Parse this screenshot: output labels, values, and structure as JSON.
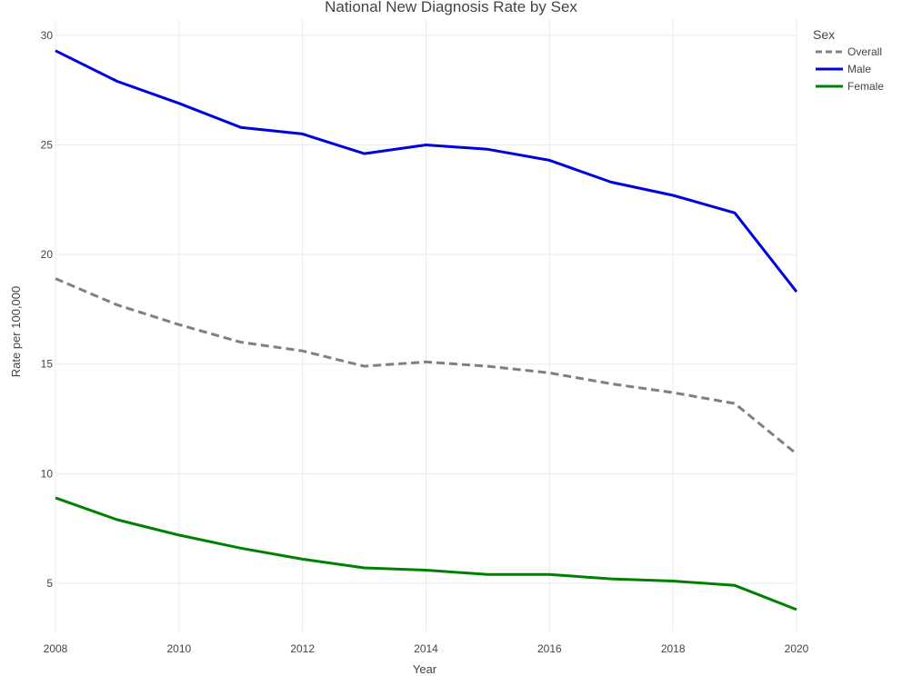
{
  "chart_data": {
    "type": "line",
    "title": "National New Diagnosis Rate by Sex",
    "xlabel": "Year",
    "ylabel": "Rate per 100,000",
    "x": [
      2008,
      2009,
      2010,
      2011,
      2012,
      2013,
      2014,
      2015,
      2016,
      2017,
      2018,
      2019,
      2020
    ],
    "xlim": [
      2008,
      2020
    ],
    "ylim": [
      2.8,
      30.7
    ],
    "x_ticks": [
      "2008",
      "2010",
      "2012",
      "2014",
      "2016",
      "2018",
      "2020"
    ],
    "y_ticks": [
      "5",
      "10",
      "15",
      "20",
      "25",
      "30"
    ],
    "grid": true,
    "legend": {
      "title": "Sex",
      "placement": "top-right"
    },
    "series": [
      {
        "name": "Overall",
        "color": "#808080",
        "dash": "dashed",
        "values": [
          18.9,
          17.7,
          16.8,
          16.0,
          15.6,
          14.9,
          15.1,
          14.9,
          14.6,
          14.1,
          13.7,
          13.2,
          10.9
        ]
      },
      {
        "name": "Male",
        "color": "#0000dd",
        "dash": "solid",
        "values": [
          29.3,
          27.9,
          26.9,
          25.8,
          25.5,
          24.6,
          25.0,
          24.8,
          24.3,
          23.3,
          22.7,
          21.9,
          18.3
        ]
      },
      {
        "name": "Female",
        "color": "#008000",
        "dash": "solid",
        "values": [
          8.9,
          7.9,
          7.2,
          6.6,
          6.1,
          5.7,
          5.6,
          5.4,
          5.4,
          5.2,
          5.1,
          4.9,
          3.8
        ]
      }
    ]
  }
}
